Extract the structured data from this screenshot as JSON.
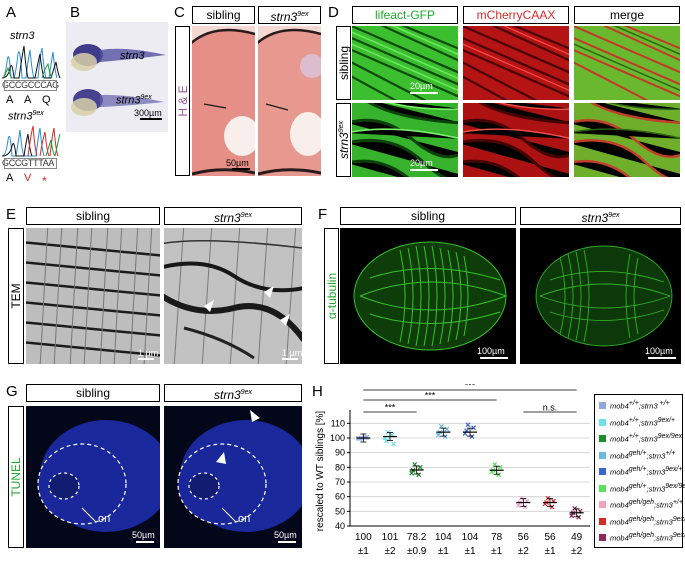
{
  "panels": {
    "A": {
      "letter": "A",
      "gene": "strn3",
      "wt_seq": "GCCGCCCAG",
      "wt_aa": [
        "A",
        "A",
        "Q"
      ],
      "mut_gene": "strn3",
      "mut_sup": "9ex",
      "mut_seq": "GCCGTTTAA",
      "mut_aa": [
        "A",
        "V",
        "*"
      ]
    },
    "B": {
      "letter": "B",
      "label_top": "strn3",
      "label_bottom": "strn3",
      "label_bottom_sup": "9ex",
      "scalebar": "300µm"
    },
    "C": {
      "letter": "C",
      "col1": "sibling",
      "col2": "strn3",
      "col2_sup": "9ex",
      "side_label": "H & E",
      "scalebar": "50µm"
    },
    "D": {
      "letter": "D",
      "col1": "lifeact-GFP",
      "col2": "mCherryCAAX",
      "col3": "merge",
      "row1": "sibling",
      "row2": "strn3",
      "row2_sup": "9ex",
      "scalebar1": "20µm",
      "scalebar2": "20µm"
    },
    "E": {
      "letter": "E",
      "col1": "sibling",
      "col2": "strn3",
      "col2_sup": "9ex",
      "side_label": "TEM",
      "scalebar1": "1 µm",
      "scalebar2": "1 µm"
    },
    "F": {
      "letter": "F",
      "col1": "sibling",
      "col2": "strn3",
      "col2_sup": "9ex",
      "side_label": "α-tubulin",
      "scalebar1": "100µm",
      "scalebar2": "100µm"
    },
    "G": {
      "letter": "G",
      "col1": "sibling",
      "col2": "strn3",
      "col2_sup": "9ex",
      "side_label": "TUNEL",
      "on_label1": "on",
      "on_label2": "on",
      "scalebar1": "50µm",
      "scalebar2": "50µm"
    },
    "H": {
      "letter": "H",
      "sig1": "***",
      "sig2": "***",
      "sig3": "***",
      "ns": "n.s."
    }
  },
  "chart_data": {
    "type": "scatter",
    "ylabel": "rescaled to WT siblings [%]",
    "ylim": [
      40,
      115
    ],
    "yticks": [
      "40",
      "50",
      "60",
      "70",
      "80",
      "90",
      "100",
      "110"
    ],
    "grid": true,
    "groups": [
      {
        "mean": 100,
        "mean_label": "100",
        "sem_label": "±1",
        "color": "#8fa9e0",
        "points": [
          100,
          100.5,
          99.8,
          100.2,
          99.6
        ]
      },
      {
        "mean": 101,
        "mean_label": "101",
        "sem_label": "±2",
        "color": "#6fe0e6",
        "points": [
          104,
          96,
          100,
          102,
          98
        ]
      },
      {
        "mean": 78.2,
        "mean_label": "78.2",
        "sem_label": "±0.9",
        "color": "#1e8c2c",
        "points": [
          82,
          80,
          76,
          75,
          78
        ]
      },
      {
        "mean": 104,
        "mean_label": "104",
        "sem_label": "±1",
        "color": "#6fb8df",
        "points": [
          108,
          106,
          102,
          101,
          104
        ]
      },
      {
        "mean": 104,
        "mean_label": "104",
        "sem_label": "±1",
        "color": "#3a63d6",
        "points": [
          109,
          107,
          103,
          101,
          105
        ]
      },
      {
        "mean": 78,
        "mean_label": "78",
        "sem_label": "±1",
        "color": "#5be05f",
        "points": [
          82,
          80,
          77,
          75,
          78
        ]
      },
      {
        "mean": 56,
        "mean_label": "56",
        "sem_label": "±2",
        "color": "#f0a3c4",
        "points": [
          59,
          57,
          54,
          53,
          56
        ]
      },
      {
        "mean": 56,
        "mean_label": "56",
        "sem_label": "±1",
        "color": "#d42a2a",
        "points": [
          59,
          57,
          55,
          53,
          56
        ]
      },
      {
        "mean": 49,
        "mean_label": "49",
        "sem_label": "±2",
        "color": "#8a2a5c",
        "points": [
          52,
          50,
          47,
          46,
          49
        ]
      }
    ],
    "legend": [
      {
        "a": "mob4",
        "as": "+/+",
        "b": ";strn3",
        "bs": " +/+",
        "color": "#8fa9e0"
      },
      {
        "a": "mob4",
        "as": "+/+",
        "b": ";strn3",
        "bs": "9ex/+",
        "color": "#6fe0e6"
      },
      {
        "a": "mob4",
        "as": "+/+",
        "b": ";strn3",
        "bs": "9ex/9ex",
        "color": "#1e8c2c"
      },
      {
        "a": "mob4",
        "as": "geh/+",
        "b": ";strn3",
        "bs": "+/+",
        "color": "#6fb8df"
      },
      {
        "a": "mob4",
        "as": "geh/+",
        "b": ";strn3",
        "bs": "9ex/+",
        "color": "#3a63d6"
      },
      {
        "a": "mob4",
        "as": "geh/+",
        "b": ";strn3",
        "bs": "9ex/9ex",
        "color": "#5be05f"
      },
      {
        "a": "mob4",
        "as": "geh/geh",
        "b": ";strn3",
        "bs": "+/+",
        "color": "#f0a3c4"
      },
      {
        "a": "mob4",
        "as": "geh/geh",
        "b": ";strn3",
        "bs": "9ex/+",
        "color": "#d42a2a"
      },
      {
        "a": "mob4",
        "as": "geh/geh",
        "b": ";strn3",
        "bs": "9ex/9ex",
        "color": "#8a2a5c"
      }
    ]
  }
}
